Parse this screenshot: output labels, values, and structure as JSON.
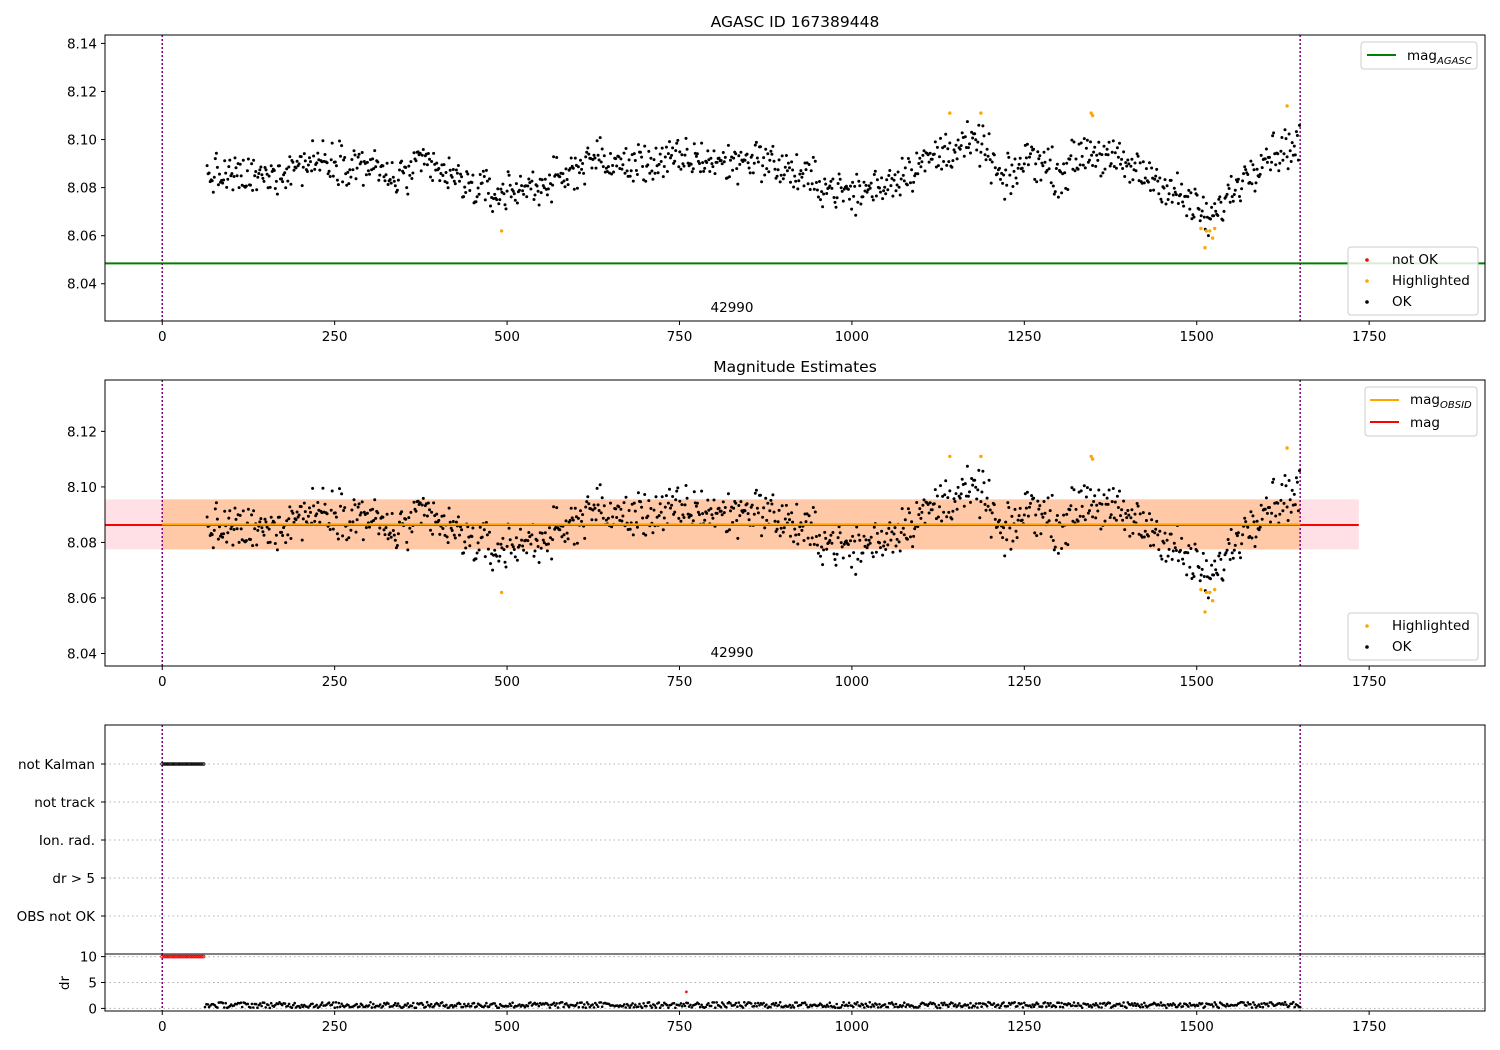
{
  "colors": {
    "ok": "#000000",
    "not_ok": "#ff0000",
    "highlighted": "#ffa500",
    "mag_agasc": "#008000",
    "mag_obsid": "#ffa500",
    "mag": "#ff0000",
    "obsid_band": "#ffc8a6",
    "mag_band": "#ffe0e6",
    "obsid_boundary": "#800080",
    "grid": "#b0b0b0"
  },
  "chart_data": [
    {
      "id": "agasc",
      "type": "scatter",
      "title": "AGASC ID 167389448",
      "xlim": [
        -83,
        1918
      ],
      "ylim": [
        8.0245,
        8.1435
      ],
      "x_ticks": [
        0,
        250,
        500,
        750,
        1000,
        1250,
        1500,
        1750
      ],
      "y_ticks": [
        8.04,
        8.06,
        8.08,
        8.1,
        8.12,
        8.14
      ],
      "y_tick_labels": [
        "8.04",
        "8.06",
        "8.08",
        "8.10",
        "8.12",
        "8.14"
      ],
      "obsid_boundaries": [
        0,
        1650
      ],
      "obsid_label": "42990",
      "obsid_label_x": 825,
      "series_x_range": [
        65,
        1650
      ],
      "mag_agasc": 8.0485,
      "trend": [
        [
          65,
          8.085
        ],
        [
          150,
          8.084
        ],
        [
          200,
          8.09
        ],
        [
          240,
          8.092
        ],
        [
          300,
          8.089
        ],
        [
          340,
          8.083
        ],
        [
          380,
          8.09
        ],
        [
          420,
          8.084
        ],
        [
          480,
          8.077
        ],
        [
          540,
          8.081
        ],
        [
          580,
          8.083
        ],
        [
          620,
          8.093
        ],
        [
          660,
          8.089
        ],
        [
          720,
          8.091
        ],
        [
          780,
          8.092
        ],
        [
          820,
          8.09
        ],
        [
          860,
          8.093
        ],
        [
          900,
          8.088
        ],
        [
          950,
          8.082
        ],
        [
          1000,
          8.077
        ],
        [
          1050,
          8.082
        ],
        [
          1100,
          8.09
        ],
        [
          1150,
          8.097
        ],
        [
          1190,
          8.098
        ],
        [
          1220,
          8.081
        ],
        [
          1260,
          8.094
        ],
        [
          1300,
          8.085
        ],
        [
          1340,
          8.096
        ],
        [
          1380,
          8.091
        ],
        [
          1440,
          8.084
        ],
        [
          1500,
          8.071
        ],
        [
          1520,
          8.066
        ],
        [
          1560,
          8.082
        ],
        [
          1600,
          8.094
        ],
        [
          1650,
          8.098
        ]
      ],
      "highlighted": [
        [
          492,
          8.062
        ],
        [
          1142,
          8.111
        ],
        [
          1187,
          8.111
        ],
        [
          1347,
          8.111
        ],
        [
          1349,
          8.11
        ],
        [
          1506,
          8.063
        ],
        [
          1512,
          8.055
        ],
        [
          1514,
          8.062
        ],
        [
          1519,
          8.062
        ],
        [
          1523,
          8.059
        ],
        [
          1526,
          8.063
        ],
        [
          1631,
          8.114
        ]
      ],
      "legend_top": [
        {
          "label": "mag",
          "sub": "AGASC",
          "color_key": "mag_agasc"
        }
      ],
      "legend_bottom": [
        {
          "label": "not OK",
          "color_key": "not_ok"
        },
        {
          "label": "Highlighted",
          "color_key": "highlighted"
        },
        {
          "label": "OK",
          "color_key": "ok"
        }
      ]
    },
    {
      "id": "estimates",
      "type": "scatter",
      "title": "Magnitude Estimates",
      "xlim": [
        -83,
        1918
      ],
      "ylim": [
        8.0355,
        8.1385
      ],
      "x_ticks": [
        0,
        250,
        500,
        750,
        1000,
        1250,
        1500,
        1750
      ],
      "y_ticks": [
        8.04,
        8.06,
        8.08,
        8.1,
        8.12
      ],
      "y_tick_labels": [
        "8.04",
        "8.06",
        "8.08",
        "8.10",
        "8.12"
      ],
      "obsid_boundaries": [
        0,
        1650
      ],
      "obsid_label": "42990",
      "obsid_label_x": 825,
      "mag_obsid": 8.0865,
      "mag_obsid_x_range": [
        0,
        1650
      ],
      "mag_obsid_band": [
        8.0775,
        8.0955
      ],
      "mag": 8.0863,
      "mag_band": [
        8.0775,
        8.0955
      ],
      "mag_band_x_range": [
        -83,
        1735
      ],
      "legend_top": [
        {
          "label": "mag",
          "sub": "OBSID",
          "color_key": "mag_obsid"
        },
        {
          "label": "mag",
          "sub": "",
          "color_key": "mag"
        }
      ],
      "legend_bottom": [
        {
          "label": "Highlighted",
          "color_key": "highlighted"
        },
        {
          "label": "OK",
          "color_key": "ok"
        }
      ]
    },
    {
      "id": "flags",
      "type": "scatter",
      "xlim": [
        -83,
        1918
      ],
      "categories": [
        "not Kalman",
        "not track",
        "Ion. rad.",
        "dr > 5",
        "OBS not OK"
      ],
      "obsid_boundaries": [
        0,
        1650
      ],
      "not_kalman_x_range": [
        0,
        60
      ]
    },
    {
      "id": "dr",
      "type": "scatter",
      "xlim": [
        -83,
        1918
      ],
      "ylim": [
        -0.5,
        10.5
      ],
      "ylabel": "dr",
      "y_ticks": [
        0,
        5,
        10
      ],
      "y_tick_labels": [
        "0",
        "5",
        "10"
      ],
      "x_ticks": [
        0,
        250,
        500,
        750,
        1000,
        1250,
        1500,
        1750
      ],
      "obsid_boundaries": [
        0,
        1650
      ],
      "clipped_x_range": [
        0,
        60
      ],
      "clipped_value": 10,
      "series_x_range": [
        62,
        1650
      ],
      "series_range": [
        0.1,
        1.2
      ],
      "outlier": [
        760,
        3.2
      ]
    }
  ]
}
